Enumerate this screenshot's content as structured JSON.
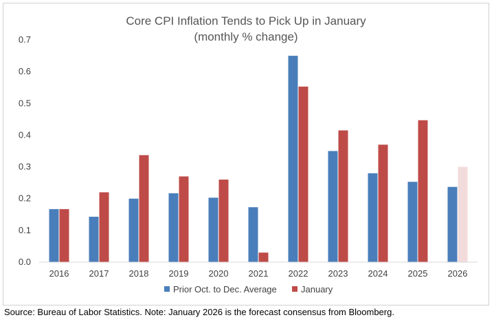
{
  "chart_data": {
    "type": "bar",
    "title": "Core CPI Inflation Tends to Pick Up in January",
    "subtitle": "(monthly % change)",
    "categories": [
      "2016",
      "2017",
      "2018",
      "2019",
      "2020",
      "2021",
      "2022",
      "2023",
      "2024",
      "2025",
      "2026"
    ],
    "series": [
      {
        "name": "Prior Oct. to Dec. Average",
        "color": "#4a7ebb",
        "values": [
          0.167,
          0.143,
          0.2,
          0.217,
          0.203,
          0.173,
          0.65,
          0.35,
          0.28,
          0.253,
          0.237
        ]
      },
      {
        "name": "January",
        "color": "#be4b48",
        "values": [
          0.167,
          0.22,
          0.337,
          0.27,
          0.26,
          0.03,
          0.553,
          0.415,
          0.37,
          0.447,
          0.3
        ]
      }
    ],
    "forecast": {
      "series": "January",
      "category": "2026",
      "color": "#f2dcdb"
    },
    "ylim": [
      0,
      0.7
    ],
    "yticks": [
      "0.0",
      "0.1",
      "0.2",
      "0.3",
      "0.4",
      "0.5",
      "0.6",
      "0.7"
    ],
    "grid": false,
    "legend": "bottom-center",
    "xlabel": "",
    "ylabel": ""
  },
  "source_note": "Source: Bureau of Labor Statistics. Note: January 2026 is the forecast consensus from Bloomberg."
}
